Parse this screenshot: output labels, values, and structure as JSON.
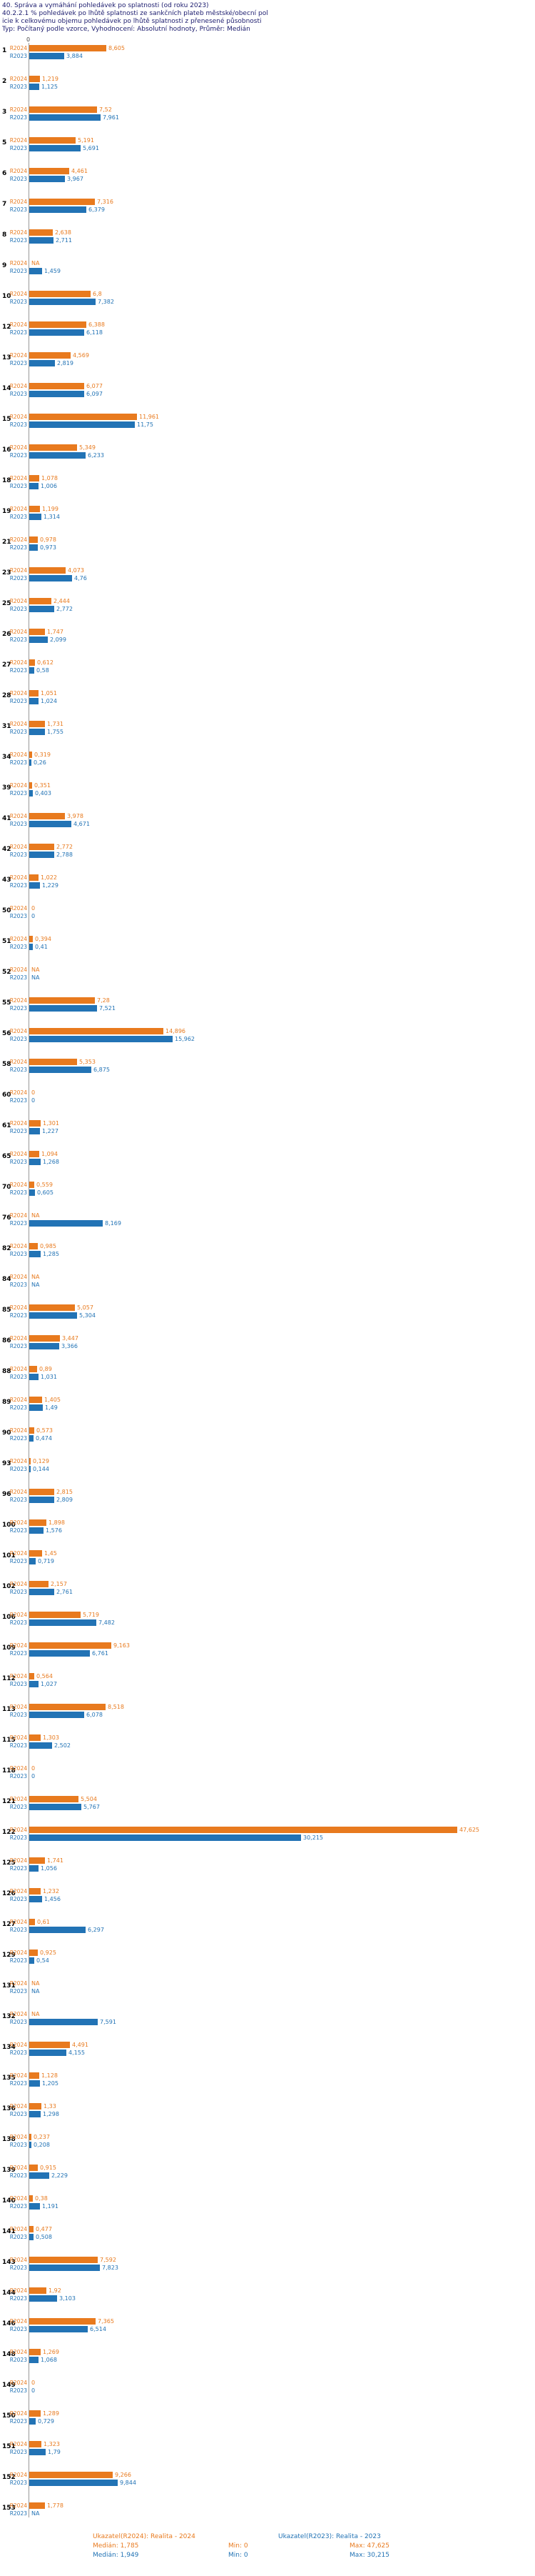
{
  "header": {
    "line1": "40. Správa a vymáhání pohledávek po splatnosti (od roku 2023)",
    "line2": "40.2.2.1 % pohledávek po lhůtě splatnosti ze sankčních plateb městské/obecní pol",
    "line3": "icie k celkovému objemu pohledávek po lhůtě splatnosti z přenesené působnosti",
    "line4": "Typ: Počítaný podle vzorce, Vyhodnocení: Absolutní hodnoty, Průměr: Medián"
  },
  "axis": {
    "zero_label": "0"
  },
  "colors": {
    "r2024": "#E87A1E",
    "r2023": "#2273B5"
  },
  "series_labels": {
    "r2024": "R2024",
    "r2023": "R2023"
  },
  "chart_data": {
    "type": "bar",
    "orientation": "horizontal",
    "title": "40.2.2.1 % pohledávek po lhůtě splatnosti ze sankčních plateb městské/obecní policie k celkovému objemu pohledávek po lhůtě splatnosti z přenesené působnosti",
    "value_axis_min": 0,
    "value_axis_max": 47.625,
    "series": [
      {
        "name": "Realita - 2024",
        "key": "v2024",
        "color": "#E87A1E"
      },
      {
        "name": "Realita - 2023",
        "key": "v2023",
        "color": "#2273B5"
      }
    ],
    "rows": [
      {
        "num": "1",
        "v2024": "8,605",
        "v2023": "3,884"
      },
      {
        "num": "2",
        "v2024": "1,219",
        "v2023": "1,125"
      },
      {
        "num": "3",
        "v2024": "7,52",
        "v2023": "7,961"
      },
      {
        "num": "5",
        "v2024": "5,191",
        "v2023": "5,691"
      },
      {
        "num": "6",
        "v2024": "4,461",
        "v2023": "3,967"
      },
      {
        "num": "7",
        "v2024": "7,316",
        "v2023": "6,379"
      },
      {
        "num": "8",
        "v2024": "2,638",
        "v2023": "2,711"
      },
      {
        "num": "9",
        "v2024": "NA",
        "v2023": "1,459"
      },
      {
        "num": "10",
        "v2024": "6,8",
        "v2023": "7,382"
      },
      {
        "num": "12",
        "v2024": "6,388",
        "v2023": "6,118"
      },
      {
        "num": "13",
        "v2024": "4,569",
        "v2023": "2,819"
      },
      {
        "num": "14",
        "v2024": "6,077",
        "v2023": "6,097"
      },
      {
        "num": "15",
        "v2024": "11,961",
        "v2023": "11,75"
      },
      {
        "num": "16",
        "v2024": "5,349",
        "v2023": "6,233"
      },
      {
        "num": "18",
        "v2024": "1,078",
        "v2023": "1,006"
      },
      {
        "num": "19",
        "v2024": "1,199",
        "v2023": "1,314"
      },
      {
        "num": "21",
        "v2024": "0,978",
        "v2023": "0,973"
      },
      {
        "num": "23",
        "v2024": "4,073",
        "v2023": "4,76"
      },
      {
        "num": "25",
        "v2024": "2,444",
        "v2023": "2,772"
      },
      {
        "num": "26",
        "v2024": "1,747",
        "v2023": "2,099"
      },
      {
        "num": "27",
        "v2024": "0,612",
        "v2023": "0,58"
      },
      {
        "num": "28",
        "v2024": "1,051",
        "v2023": "1,024"
      },
      {
        "num": "31",
        "v2024": "1,731",
        "v2023": "1,755"
      },
      {
        "num": "34",
        "v2024": "0,319",
        "v2023": "0,26"
      },
      {
        "num": "39",
        "v2024": "0,351",
        "v2023": "0,403"
      },
      {
        "num": "41",
        "v2024": "3,978",
        "v2023": "4,671"
      },
      {
        "num": "42",
        "v2024": "2,772",
        "v2023": "2,788"
      },
      {
        "num": "43",
        "v2024": "1,022",
        "v2023": "1,229"
      },
      {
        "num": "50",
        "v2024": "0",
        "v2023": "0"
      },
      {
        "num": "51",
        "v2024": "0,394",
        "v2023": "0,41"
      },
      {
        "num": "52",
        "v2024": "NA",
        "v2023": "NA"
      },
      {
        "num": "55",
        "v2024": "7,28",
        "v2023": "7,521"
      },
      {
        "num": "56",
        "v2024": "14,896",
        "v2023": "15,962"
      },
      {
        "num": "58",
        "v2024": "5,353",
        "v2023": "6,875"
      },
      {
        "num": "60",
        "v2024": "0",
        "v2023": "0"
      },
      {
        "num": "61",
        "v2024": "1,301",
        "v2023": "1,227"
      },
      {
        "num": "65",
        "v2024": "1,094",
        "v2023": "1,268"
      },
      {
        "num": "70",
        "v2024": "0,559",
        "v2023": "0,605"
      },
      {
        "num": "76",
        "v2024": "NA",
        "v2023": "8,169"
      },
      {
        "num": "82",
        "v2024": "0,985",
        "v2023": "1,285"
      },
      {
        "num": "84",
        "v2024": "NA",
        "v2023": "NA"
      },
      {
        "num": "85",
        "v2024": "5,057",
        "v2023": "5,304"
      },
      {
        "num": "86",
        "v2024": "3,447",
        "v2023": "3,366"
      },
      {
        "num": "88",
        "v2024": "0,89",
        "v2023": "1,031"
      },
      {
        "num": "89",
        "v2024": "1,405",
        "v2023": "1,49"
      },
      {
        "num": "90",
        "v2024": "0,573",
        "v2023": "0,474"
      },
      {
        "num": "93",
        "v2024": "0,129",
        "v2023": "0,144"
      },
      {
        "num": "96",
        "v2024": "2,815",
        "v2023": "2,809"
      },
      {
        "num": "100",
        "v2024": "1,898",
        "v2023": "1,576"
      },
      {
        "num": "101",
        "v2024": "1,45",
        "v2023": "0,719"
      },
      {
        "num": "102",
        "v2024": "2,157",
        "v2023": "2,761"
      },
      {
        "num": "106",
        "v2024": "5,719",
        "v2023": "7,482"
      },
      {
        "num": "109",
        "v2024": "9,163",
        "v2023": "6,761"
      },
      {
        "num": "112",
        "v2024": "0,564",
        "v2023": "1,027"
      },
      {
        "num": "113",
        "v2024": "8,518",
        "v2023": "6,078"
      },
      {
        "num": "115",
        "v2024": "1,303",
        "v2023": "2,502"
      },
      {
        "num": "118",
        "v2024": "0",
        "v2023": "0"
      },
      {
        "num": "121",
        "v2024": "5,504",
        "v2023": "5,767"
      },
      {
        "num": "122",
        "v2024": "47,625",
        "v2023": "30,215"
      },
      {
        "num": "125",
        "v2024": "1,741",
        "v2023": "1,056"
      },
      {
        "num": "126",
        "v2024": "1,232",
        "v2023": "1,456"
      },
      {
        "num": "127",
        "v2024": "0,61",
        "v2023": "6,297"
      },
      {
        "num": "129",
        "v2024": "0,925",
        "v2023": "0,54"
      },
      {
        "num": "131",
        "v2024": "NA",
        "v2023": "NA"
      },
      {
        "num": "132",
        "v2024": "NA",
        "v2023": "7,591"
      },
      {
        "num": "134",
        "v2024": "4,491",
        "v2023": "4,155"
      },
      {
        "num": "135",
        "v2024": "1,128",
        "v2023": "1,205"
      },
      {
        "num": "136",
        "v2024": "1,33",
        "v2023": "1,298"
      },
      {
        "num": "138",
        "v2024": "0,237",
        "v2023": "0,208"
      },
      {
        "num": "139",
        "v2024": "0,915",
        "v2023": "2,229"
      },
      {
        "num": "140",
        "v2024": "0,38",
        "v2023": "1,191"
      },
      {
        "num": "141",
        "v2024": "0,477",
        "v2023": "0,508"
      },
      {
        "num": "143",
        "v2024": "7,592",
        "v2023": "7,823"
      },
      {
        "num": "144",
        "v2024": "1,92",
        "v2023": "3,103"
      },
      {
        "num": "146",
        "v2024": "7,365",
        "v2023": "6,514"
      },
      {
        "num": "148",
        "v2024": "1,269",
        "v2023": "1,068"
      },
      {
        "num": "149",
        "v2024": "0",
        "v2023": "0"
      },
      {
        "num": "150",
        "v2024": "1,289",
        "v2023": "0,729"
      },
      {
        "num": "151",
        "v2024": "1,323",
        "v2023": "1,79"
      },
      {
        "num": "152",
        "v2024": "9,266",
        "v2023": "9,844"
      },
      {
        "num": "153",
        "v2024": "1,778",
        "v2023": "NA"
      }
    ]
  },
  "footer": {
    "legend_2024": "Ukazatel(R2024): Realita - 2024",
    "legend_2023": "Ukazatel(R2023): Realita - 2023",
    "stats_2024": {
      "median": "Medián: 1,785",
      "min": "Min: 0",
      "max": "Max: 47,625"
    },
    "stats_2023": {
      "median": "Medián: 1,949",
      "min": "Min: 0",
      "max": "Max: 30,215"
    }
  }
}
